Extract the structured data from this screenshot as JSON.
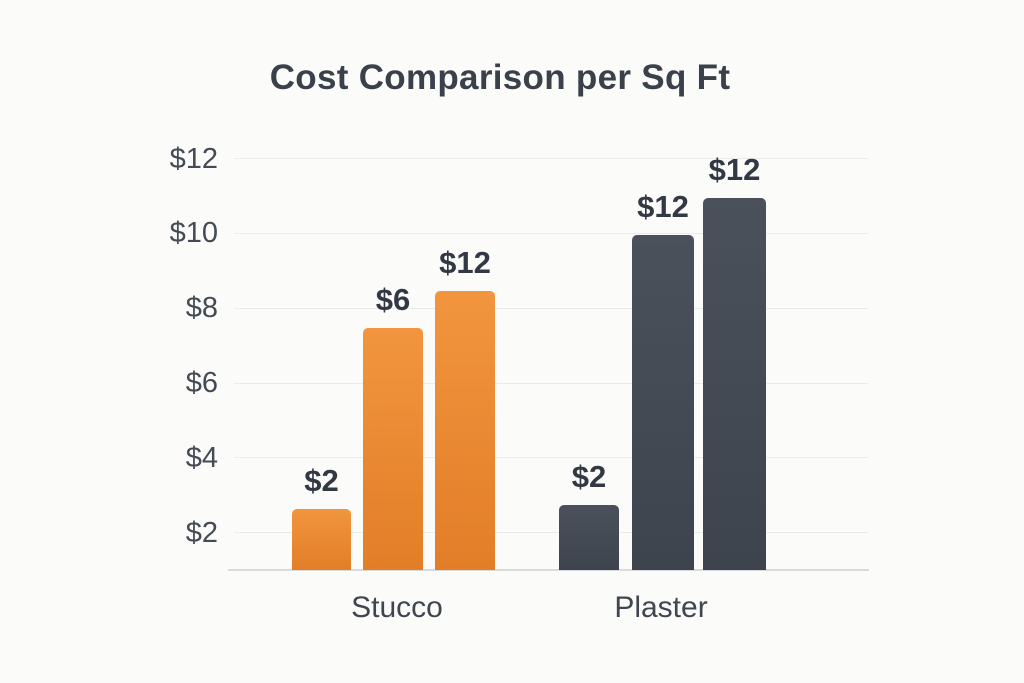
{
  "page": {
    "background": "#FBFBFA"
  },
  "chart_data": {
    "type": "bar",
    "title": "Cost Comparison per Sq Ft",
    "xlabel": "",
    "ylabel": "",
    "categories": [
      "Stucco",
      "Plaster"
    ],
    "legend": "none",
    "y_axis": {
      "tick_prefix": "$",
      "ticks": [
        {
          "value": 12,
          "label": "$12"
        },
        {
          "value": 10,
          "label": "$10"
        },
        {
          "value": 8,
          "label": "$8"
        },
        {
          "value": 6,
          "label": "$6"
        },
        {
          "value": 4,
          "label": "$4"
        },
        {
          "value": 2,
          "label": "$2"
        }
      ],
      "baseline_value": 1,
      "ylim": [
        1,
        13
      ],
      "grid": true
    },
    "groups": [
      {
        "label": "Stucco",
        "bar_color_top": "#F2953F",
        "bar_color_bottom": "#E27E27",
        "bars": [
          {
            "label": "$2",
            "value": 2,
            "rendered_top_value": 2.63
          },
          {
            "label": "$6",
            "value": 6,
            "rendered_top_value": 7.47
          },
          {
            "label": "$12",
            "value": 12,
            "rendered_top_value": 8.46
          }
        ]
      },
      {
        "label": "Plaster",
        "bar_color_top": "#4A515B",
        "bar_color_bottom": "#3E444D",
        "bars": [
          {
            "label": "$2",
            "value": 2,
            "rendered_top_value": 2.74
          },
          {
            "label": "$12",
            "value": 12,
            "rendered_top_value": 9.96
          },
          {
            "label": "$12",
            "value": 12,
            "rendered_top_value": 10.95
          }
        ]
      }
    ],
    "colors": {
      "accent_orange": "#ED8B33",
      "accent_slate": "#454B55",
      "gridline": "#EAEBEB",
      "axis_line": "#D9DADC",
      "tick_label": "#454B54",
      "data_label": "#323844",
      "title": "#3A414B",
      "category_label": "#3F464F"
    }
  }
}
